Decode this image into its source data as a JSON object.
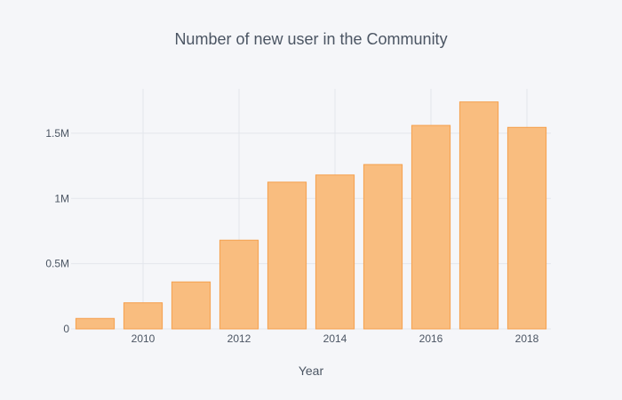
{
  "chart_data": {
    "type": "bar",
    "title": "Number of new user in the Community",
    "xlabel": "Year",
    "ylabel": "",
    "x": [
      2009,
      2010,
      2011,
      2012,
      2013,
      2014,
      2015,
      2016,
      2017,
      2018
    ],
    "values": [
      80000,
      200000,
      360000,
      680000,
      1125000,
      1180000,
      1260000,
      1560000,
      1740000,
      1545000
    ],
    "x_ticks": [
      2010,
      2012,
      2014,
      2016,
      2018
    ],
    "x_tick_labels": [
      "2010",
      "2012",
      "2014",
      "2016",
      "2018"
    ],
    "y_ticks": [
      0,
      500000,
      1000000,
      1500000
    ],
    "y_tick_labels": [
      "0",
      "0.5M",
      "1M",
      "1.5M"
    ],
    "ylim": [
      0,
      1840000
    ],
    "xlim": [
      2008.5,
      2018.5
    ],
    "grid": true,
    "bar_color": "#f9bd7f",
    "bar_edge_color": "#f5a04d",
    "background": "#f5f6f9",
    "grid_color": "#e3e6ec"
  }
}
